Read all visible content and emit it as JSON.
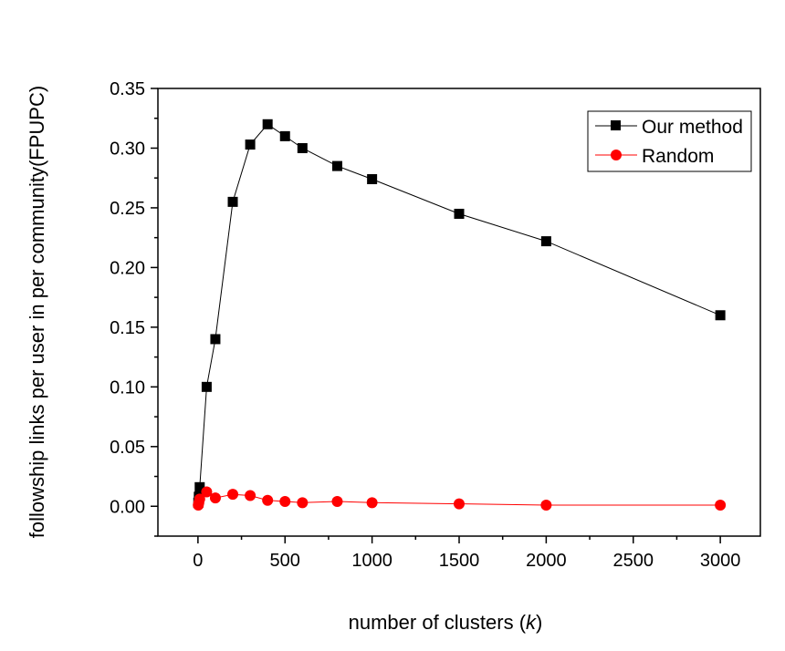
{
  "chart_data": {
    "type": "line",
    "xlabel": "number of clusters",
    "xlabel_var": "k",
    "ylabel": "followship links per user in per community(FPUPC)",
    "xlim": [
      -230,
      3230
    ],
    "ylim": [
      -0.025,
      0.35
    ],
    "x_ticks": [
      0,
      500,
      1000,
      1500,
      2000,
      2500,
      3000
    ],
    "y_ticks": [
      0.0,
      0.05,
      0.1,
      0.15,
      0.2,
      0.25,
      0.3,
      0.35
    ],
    "x_tick_labels": [
      "0",
      "500",
      "1000",
      "1500",
      "2000",
      "2500",
      "3000"
    ],
    "y_tick_labels": [
      "0.00",
      "0.05",
      "0.10",
      "0.15",
      "0.20",
      "0.25",
      "0.30",
      "0.35"
    ],
    "grid": false,
    "legend_position": "top-right",
    "series": [
      {
        "name": "Our method",
        "color": "#000000",
        "marker": "square",
        "x": [
          2,
          5,
          10,
          50,
          100,
          200,
          300,
          400,
          500,
          600,
          800,
          1000,
          1500,
          2000,
          3000
        ],
        "y": [
          0.003,
          0.008,
          0.016,
          0.1,
          0.14,
          0.255,
          0.303,
          0.32,
          0.31,
          0.3,
          0.285,
          0.274,
          0.245,
          0.222,
          0.16
        ]
      },
      {
        "name": "Random",
        "color": "#ff0000",
        "marker": "circle",
        "x": [
          2,
          5,
          10,
          50,
          100,
          200,
          300,
          400,
          500,
          600,
          800,
          1000,
          1500,
          2000,
          3000
        ],
        "y": [
          0.001,
          0.003,
          0.006,
          0.012,
          0.007,
          0.01,
          0.009,
          0.005,
          0.004,
          0.003,
          0.004,
          0.003,
          0.002,
          0.001,
          0.001
        ]
      }
    ]
  }
}
